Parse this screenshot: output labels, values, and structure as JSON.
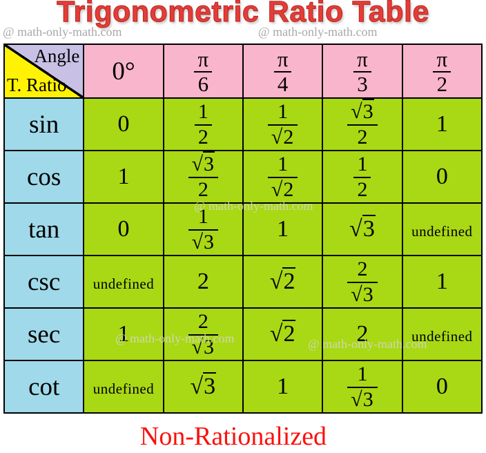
{
  "title": "Trigonometric Ratio Table",
  "caption": "Non-Rationalized",
  "watermark": "@ math-only-math.com",
  "colors": {
    "header_pink": "#f9b5cb",
    "cell_green": "#a9d814",
    "label_blue": "#a0d9e9",
    "corner_yellow": "#fff203",
    "corner_lavender": "#c9c0e6",
    "border_black": "#000000",
    "title_red": "#e33d38",
    "caption_red": "#fb100c",
    "watermark_gray": "#a8a8a8"
  },
  "table": {
    "corner": {
      "top_right": "Angle",
      "bottom_left": "T. Ratio"
    },
    "angle_headers": [
      "0°",
      "frac(π,6)",
      "frac(π,4)",
      "frac(π,3)",
      "frac(π,2)"
    ],
    "rows": [
      {
        "label": "sin",
        "values": [
          "0",
          "frac(1,2)",
          "frac(1,sqrt(2))",
          "frac(sqrt(3),2)",
          "1"
        ]
      },
      {
        "label": "cos",
        "values": [
          "1",
          "frac(sqrt(3),2)",
          "frac(1,sqrt(2))",
          "frac(1,2)",
          "0"
        ]
      },
      {
        "label": "tan",
        "values": [
          "0",
          "frac(1,sqrt(3))",
          "1",
          "sqrt(3)",
          "undefined"
        ]
      },
      {
        "label": "csc",
        "values": [
          "undefined",
          "2",
          "sqrt(2)",
          "frac(2,sqrt(3))",
          "1"
        ]
      },
      {
        "label": "sec",
        "values": [
          "1",
          "frac(2,sqrt(3))",
          "sqrt(2)",
          "2",
          "undefined"
        ]
      },
      {
        "label": "cot",
        "values": [
          "undefined",
          "sqrt(3)",
          "1",
          "frac(1,sqrt(3))",
          "0"
        ]
      }
    ]
  }
}
